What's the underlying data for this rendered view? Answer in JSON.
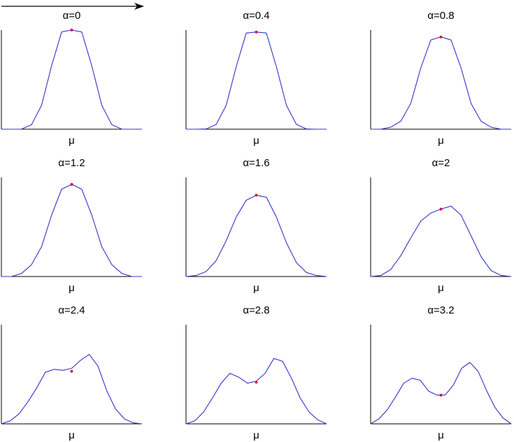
{
  "chart_data": [
    {
      "type": "line",
      "title": "α=0",
      "xlabel": "μ",
      "y": [
        0.0,
        0.0,
        0.001,
        0.045,
        0.24,
        0.64,
        0.98,
        1.0,
        0.98,
        0.64,
        0.24,
        0.045,
        0.001,
        0.0,
        0.0
      ],
      "marker_y": 1.0
    },
    {
      "type": "line",
      "title": "α=0.4",
      "xlabel": "μ",
      "y": [
        0.0,
        0.0,
        0.002,
        0.047,
        0.24,
        0.63,
        0.97,
        0.98,
        0.97,
        0.63,
        0.24,
        0.047,
        0.002,
        0.0,
        0.0
      ],
      "marker_y": 0.98
    },
    {
      "type": "line",
      "title": "α=0.8",
      "xlabel": "μ",
      "y": [
        0.0,
        0.0,
        0.02,
        0.08,
        0.26,
        0.62,
        0.9,
        0.93,
        0.9,
        0.62,
        0.26,
        0.08,
        0.02,
        0.0,
        0.0
      ],
      "marker_y": 0.93
    },
    {
      "type": "line",
      "title": "α=1.2",
      "xlabel": "μ",
      "y": [
        0.0,
        0.0,
        0.03,
        0.12,
        0.3,
        0.62,
        0.88,
        0.93,
        0.88,
        0.62,
        0.3,
        0.12,
        0.03,
        0.0,
        0.0
      ],
      "marker_y": 0.93
    },
    {
      "type": "line",
      "title": "α=1.6",
      "xlabel": "μ",
      "y": [
        0.0,
        0.01,
        0.05,
        0.16,
        0.36,
        0.6,
        0.77,
        0.82,
        0.8,
        0.6,
        0.34,
        0.14,
        0.04,
        0.01,
        0.0
      ],
      "marker_y": 0.82
    },
    {
      "type": "line",
      "title": "α=2",
      "xlabel": "μ",
      "y": [
        0.0,
        0.01,
        0.07,
        0.21,
        0.39,
        0.56,
        0.64,
        0.68,
        0.71,
        0.62,
        0.41,
        0.2,
        0.06,
        0.01,
        0.0
      ],
      "marker_y": 0.68
    },
    {
      "type": "line",
      "title": "α=2.4",
      "xlabel": "μ",
      "y": [
        0.0,
        0.03,
        0.1,
        0.22,
        0.36,
        0.52,
        0.55,
        0.54,
        0.56,
        0.64,
        0.7,
        0.58,
        0.33,
        0.15,
        0.05,
        0.01,
        0.0
      ],
      "marker_y": 0.53
    },
    {
      "type": "line",
      "title": "α=2.8",
      "xlabel": "μ",
      "y": [
        0.0,
        0.03,
        0.12,
        0.26,
        0.41,
        0.51,
        0.47,
        0.41,
        0.43,
        0.51,
        0.66,
        0.63,
        0.46,
        0.26,
        0.12,
        0.04,
        0.0
      ],
      "marker_y": 0.42
    },
    {
      "type": "line",
      "title": "α=3.2",
      "xlabel": "μ",
      "y": [
        0.0,
        0.05,
        0.14,
        0.27,
        0.41,
        0.46,
        0.44,
        0.33,
        0.29,
        0.29,
        0.39,
        0.56,
        0.62,
        0.53,
        0.34,
        0.17,
        0.06,
        0.0
      ],
      "marker_y": 0.29
    }
  ],
  "colors": {
    "line": "#3333cc",
    "marker": "#e0103a",
    "axis": "#000000",
    "arrow": "#000000"
  }
}
